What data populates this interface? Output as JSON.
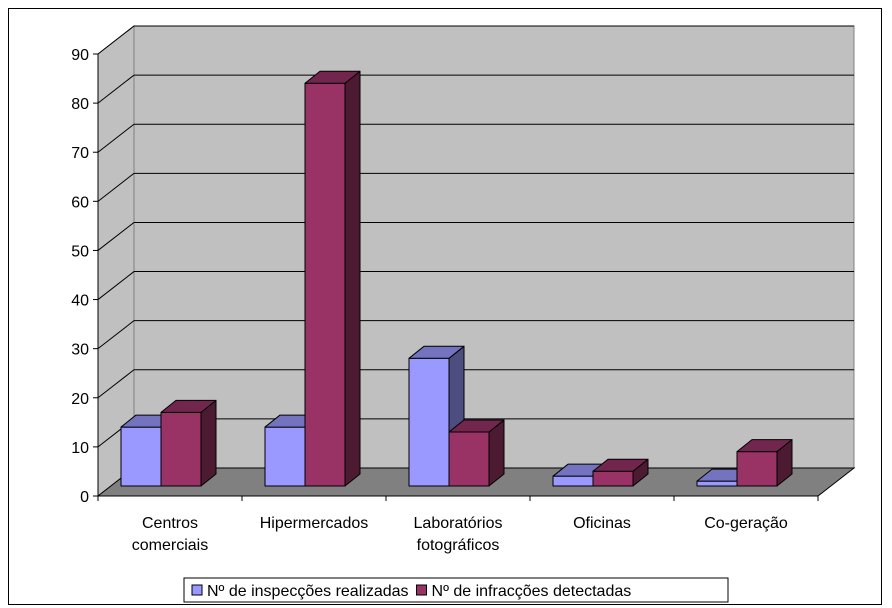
{
  "chart_data": {
    "type": "bar",
    "title": "",
    "xlabel": "",
    "ylabel": "",
    "ylim": [
      0,
      90
    ],
    "yticks": [
      0,
      10,
      20,
      30,
      40,
      50,
      60,
      70,
      80,
      90
    ],
    "categories": [
      [
        "Centros",
        "comerciais"
      ],
      [
        "Hipermercados"
      ],
      [
        "Laboratórios",
        "fotográficos"
      ],
      [
        "Oficinas"
      ],
      [
        "Co-geração"
      ]
    ],
    "series": [
      {
        "name": "Nº de inspecções realizadas",
        "values": [
          12,
          12,
          26,
          2,
          1
        ],
        "color": "#9999ff"
      },
      {
        "name": "Nº de infracções detectadas",
        "values": [
          15,
          82,
          11,
          3,
          7
        ],
        "color": "#993366"
      }
    ],
    "grid": true,
    "three_d": true,
    "wall_color": "#c0c0c0",
    "floor_color": "#808080",
    "legend_position": "bottom"
  }
}
